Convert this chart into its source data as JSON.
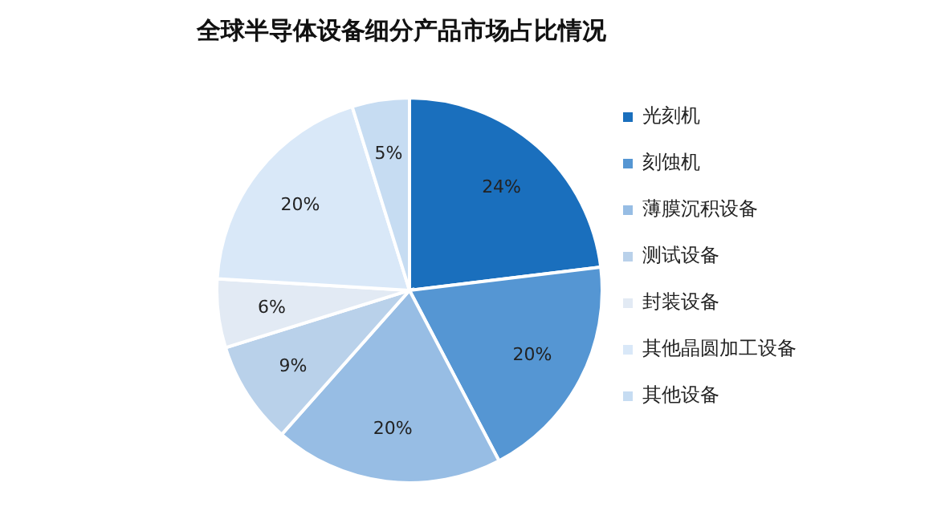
{
  "chart_data": {
    "type": "pie",
    "title": "全球半导体设备细分产品市场占比情况",
    "categories": [
      "光刻机",
      "刻蚀机",
      "薄膜沉积设备",
      "测试设备",
      "封装设备",
      "其他晶圆加工设备",
      "其他设备"
    ],
    "values": [
      24,
      20,
      20,
      9,
      6,
      20,
      5
    ],
    "colors": [
      "#1a6fbd",
      "#5596d3",
      "#97bde4",
      "#b9d1ea",
      "#e2eaf4",
      "#d9e8f8",
      "#c6dcf2"
    ],
    "value_labels": [
      "24%",
      "20%",
      "20%",
      "9%",
      "6%",
      "20%",
      "5%"
    ],
    "legend": "right"
  }
}
